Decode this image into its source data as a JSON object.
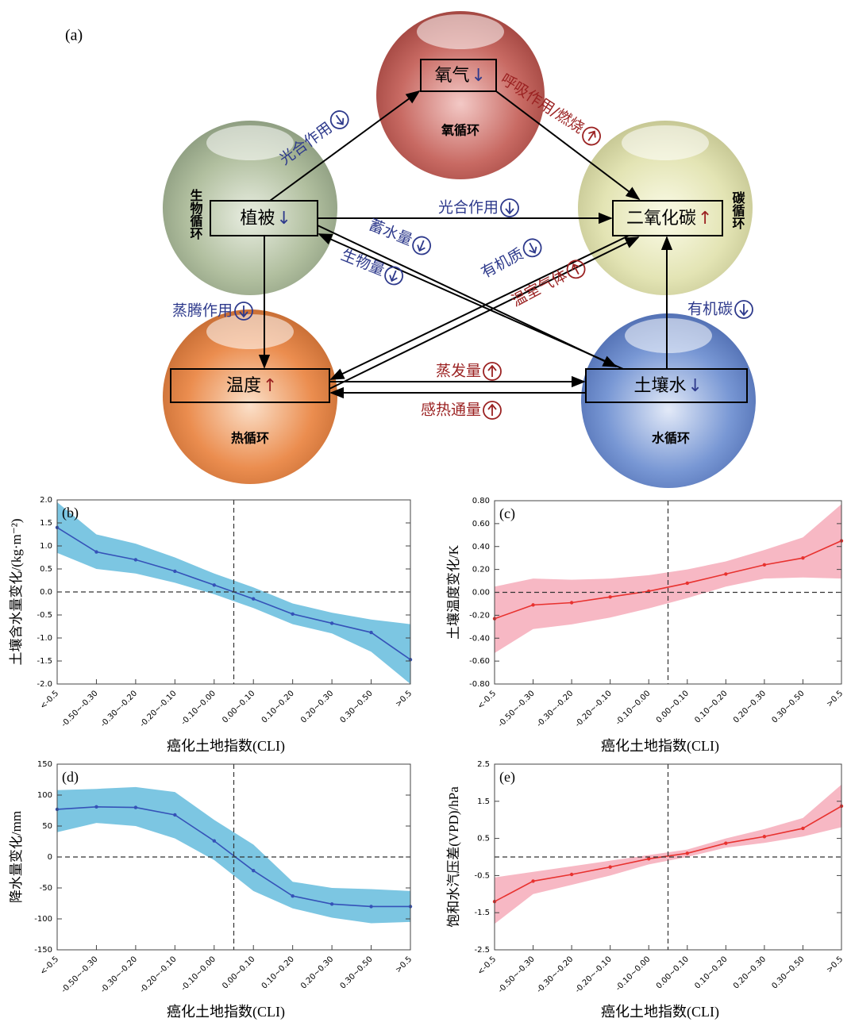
{
  "diagram": {
    "panel_label": "(a)",
    "cycles": [
      "氧循环",
      "生物循环",
      "碳循环",
      "热循环",
      "水循环"
    ],
    "nodes": [
      {
        "label": "氧气",
        "trend": "↓"
      },
      {
        "label": "植被",
        "trend": "↓"
      },
      {
        "label": "二氧化碳",
        "trend": "↑"
      },
      {
        "label": "温度",
        "trend": "↑"
      },
      {
        "label": "土壤水",
        "trend": "↓"
      }
    ],
    "edges": [
      {
        "label": "光合作用"
      },
      {
        "label": "呼吸作用/燃烧"
      },
      {
        "label": "光合作用"
      },
      {
        "label": "蓄水量"
      },
      {
        "label": "生物量"
      },
      {
        "label": "有机质"
      },
      {
        "label": "温室气体"
      },
      {
        "label": "蒸腾作用"
      },
      {
        "label": "有机碳"
      },
      {
        "label": "蒸发量"
      },
      {
        "label": "感热通量"
      }
    ]
  },
  "chart_data": [
    {
      "type": "line",
      "panel_label": "(b)",
      "x_label": "癌化土地指数(CLI)",
      "y_label": "土壤含水量变化/(kg·m⁻²)",
      "categories": [
        "<-0.5",
        "-0.50~-0.30",
        "-0.30~-0.20",
        "-0.20~-0.10",
        "-0.10~0.00",
        "0.00~0.10",
        "0.10~0.20",
        "0.20~0.30",
        "0.30~0.50",
        ">0.5"
      ],
      "values": [
        1.4,
        0.87,
        0.7,
        0.45,
        0.15,
        -0.15,
        -0.48,
        -0.68,
        -0.88,
        -1.47
      ],
      "upper": [
        1.95,
        1.25,
        1.05,
        0.75,
        0.4,
        0.1,
        -0.25,
        -0.45,
        -0.6,
        -0.7
      ],
      "lower": [
        0.85,
        0.5,
        0.4,
        0.2,
        -0.05,
        -0.35,
        -0.7,
        -0.9,
        -1.3,
        -2.0
      ],
      "color": "#3552b8",
      "band_color": "#7cc6e2",
      "ylim": [
        -2,
        2
      ],
      "yticks": [
        {
          "value": -2,
          "label": "-2.0"
        },
        -1.5,
        {
          "value": -1,
          "label": "-1.0"
        },
        -0.5,
        {
          "value": 0,
          "label": "0.0"
        },
        0.5,
        {
          "value": 1,
          "label": "1.0"
        },
        1.5,
        {
          "value": 2,
          "label": "2.0"
        }
      ],
      "ref_x": 4.5,
      "ref_y": 0
    },
    {
      "type": "line",
      "panel_label": "(c)",
      "x_label": "癌化土地指数(CLI)",
      "y_label": "土壤温度变化/K",
      "categories": [
        "<-0.5",
        "-0.50~-0.30",
        "-0.30~-0.20",
        "-0.20~-0.10",
        "-0.10~0.00",
        "0.00~0.10",
        "0.10~0.20",
        "0.20~0.30",
        "0.30~0.50",
        ">0.5"
      ],
      "values": [
        -0.23,
        -0.11,
        -0.09,
        -0.04,
        0.01,
        0.08,
        0.16,
        0.24,
        0.3,
        0.45
      ],
      "upper": [
        0.05,
        0.12,
        0.11,
        0.12,
        0.15,
        0.2,
        0.27,
        0.37,
        0.48,
        0.77
      ],
      "lower": [
        -0.53,
        -0.32,
        -0.28,
        -0.22,
        -0.14,
        -0.05,
        0.05,
        0.12,
        0.13,
        0.12
      ],
      "color": "#e8322f",
      "band_color": "#f7b8c4",
      "ylim": [
        -0.8,
        0.8
      ],
      "yticks": [
        {
          "value": -0.8,
          "label": "-0.80"
        },
        {
          "value": -0.6,
          "label": "-0.60"
        },
        {
          "value": -0.4,
          "label": "-0.40"
        },
        {
          "value": -0.2,
          "label": "-0.20"
        },
        {
          "value": 0,
          "label": "0.00"
        },
        {
          "value": 0.2,
          "label": "0.20"
        },
        {
          "value": 0.4,
          "label": "0.40"
        },
        {
          "value": 0.6,
          "label": "0.60"
        },
        {
          "value": 0.8,
          "label": "0.80"
        }
      ],
      "ref_x": 4.5,
      "ref_y": 0
    },
    {
      "type": "line",
      "panel_label": "(d)",
      "x_label": "癌化土地指数(CLI)",
      "y_label": "降水量变化/mm",
      "categories": [
        "<-0.5",
        "-0.50~-0.30",
        "-0.30~-0.20",
        "-0.20~-0.10",
        "-0.10~0.00",
        "0.00~0.10",
        "0.10~0.20",
        "0.20~0.30",
        "0.30~0.50",
        ">0.5"
      ],
      "values": [
        77,
        81,
        80,
        68,
        26,
        -22,
        -63,
        -76,
        -80,
        -80
      ],
      "upper": [
        108,
        110,
        113,
        105,
        60,
        20,
        -40,
        -50,
        -52,
        -55
      ],
      "lower": [
        40,
        55,
        50,
        30,
        -5,
        -55,
        -83,
        -98,
        -107,
        -105
      ],
      "color": "#3552b8",
      "band_color": "#7cc6e2",
      "ylim": [
        -150,
        150
      ],
      "yticks": [
        -150,
        -100,
        -50,
        0,
        50,
        100,
        150
      ],
      "ref_x": 4.5,
      "ref_y": 0
    },
    {
      "type": "line",
      "panel_label": "(e)",
      "x_label": "癌化土地指数(CLI)",
      "y_label": "饱和水汽压差(VPD)/hPa",
      "categories": [
        "<-0.5",
        "-0.50~-0.30",
        "-0.30~-0.20",
        "-0.20~-0.10",
        "-0.10~0.00",
        "0.00~0.10",
        "0.10~0.20",
        "0.20~0.30",
        "0.30~0.50",
        ">0.5"
      ],
      "values": [
        -1.2,
        -0.65,
        -0.47,
        -0.27,
        -0.05,
        0.1,
        0.37,
        0.55,
        0.77,
        1.37
      ],
      "upper": [
        -0.55,
        -0.4,
        -0.25,
        -0.1,
        0.05,
        0.2,
        0.5,
        0.75,
        1.05,
        1.95
      ],
      "lower": [
        -1.8,
        -1.0,
        -0.75,
        -0.5,
        -0.2,
        0,
        0.25,
        0.38,
        0.55,
        0.8
      ],
      "color": "#e8322f",
      "band_color": "#f7b8c4",
      "ylim": [
        -2.5,
        2.5
      ],
      "yticks": [
        -2.5,
        -1.5,
        -0.5,
        0.5,
        1.5,
        2.5
      ],
      "ref_x": 4.5,
      "ref_y": 0
    }
  ]
}
